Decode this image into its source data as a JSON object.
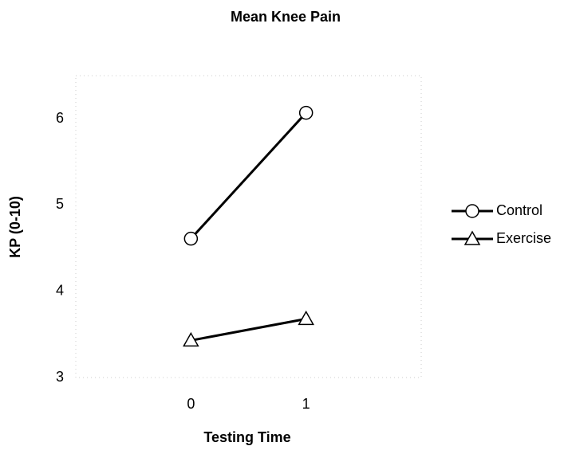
{
  "chart_data": {
    "type": "line",
    "title": "Mean Knee Pain",
    "x_label": "Testing Time",
    "y_label": "KP (0-10)",
    "x": [
      0,
      1
    ],
    "series": [
      {
        "name": "Control",
        "color": "#000000",
        "marker": "circle",
        "values": [
          4.61,
          6.07
        ]
      },
      {
        "name": "Exercise",
        "color": "#000000",
        "marker": "triangle",
        "values": [
          3.43,
          3.68
        ]
      }
    ],
    "xlim": [
      -1,
      2
    ],
    "xticks": [
      0,
      1
    ],
    "ylim": [
      3,
      6.5
    ],
    "yticks": [
      3,
      4,
      5,
      6
    ],
    "grid": false,
    "legend": "right"
  }
}
